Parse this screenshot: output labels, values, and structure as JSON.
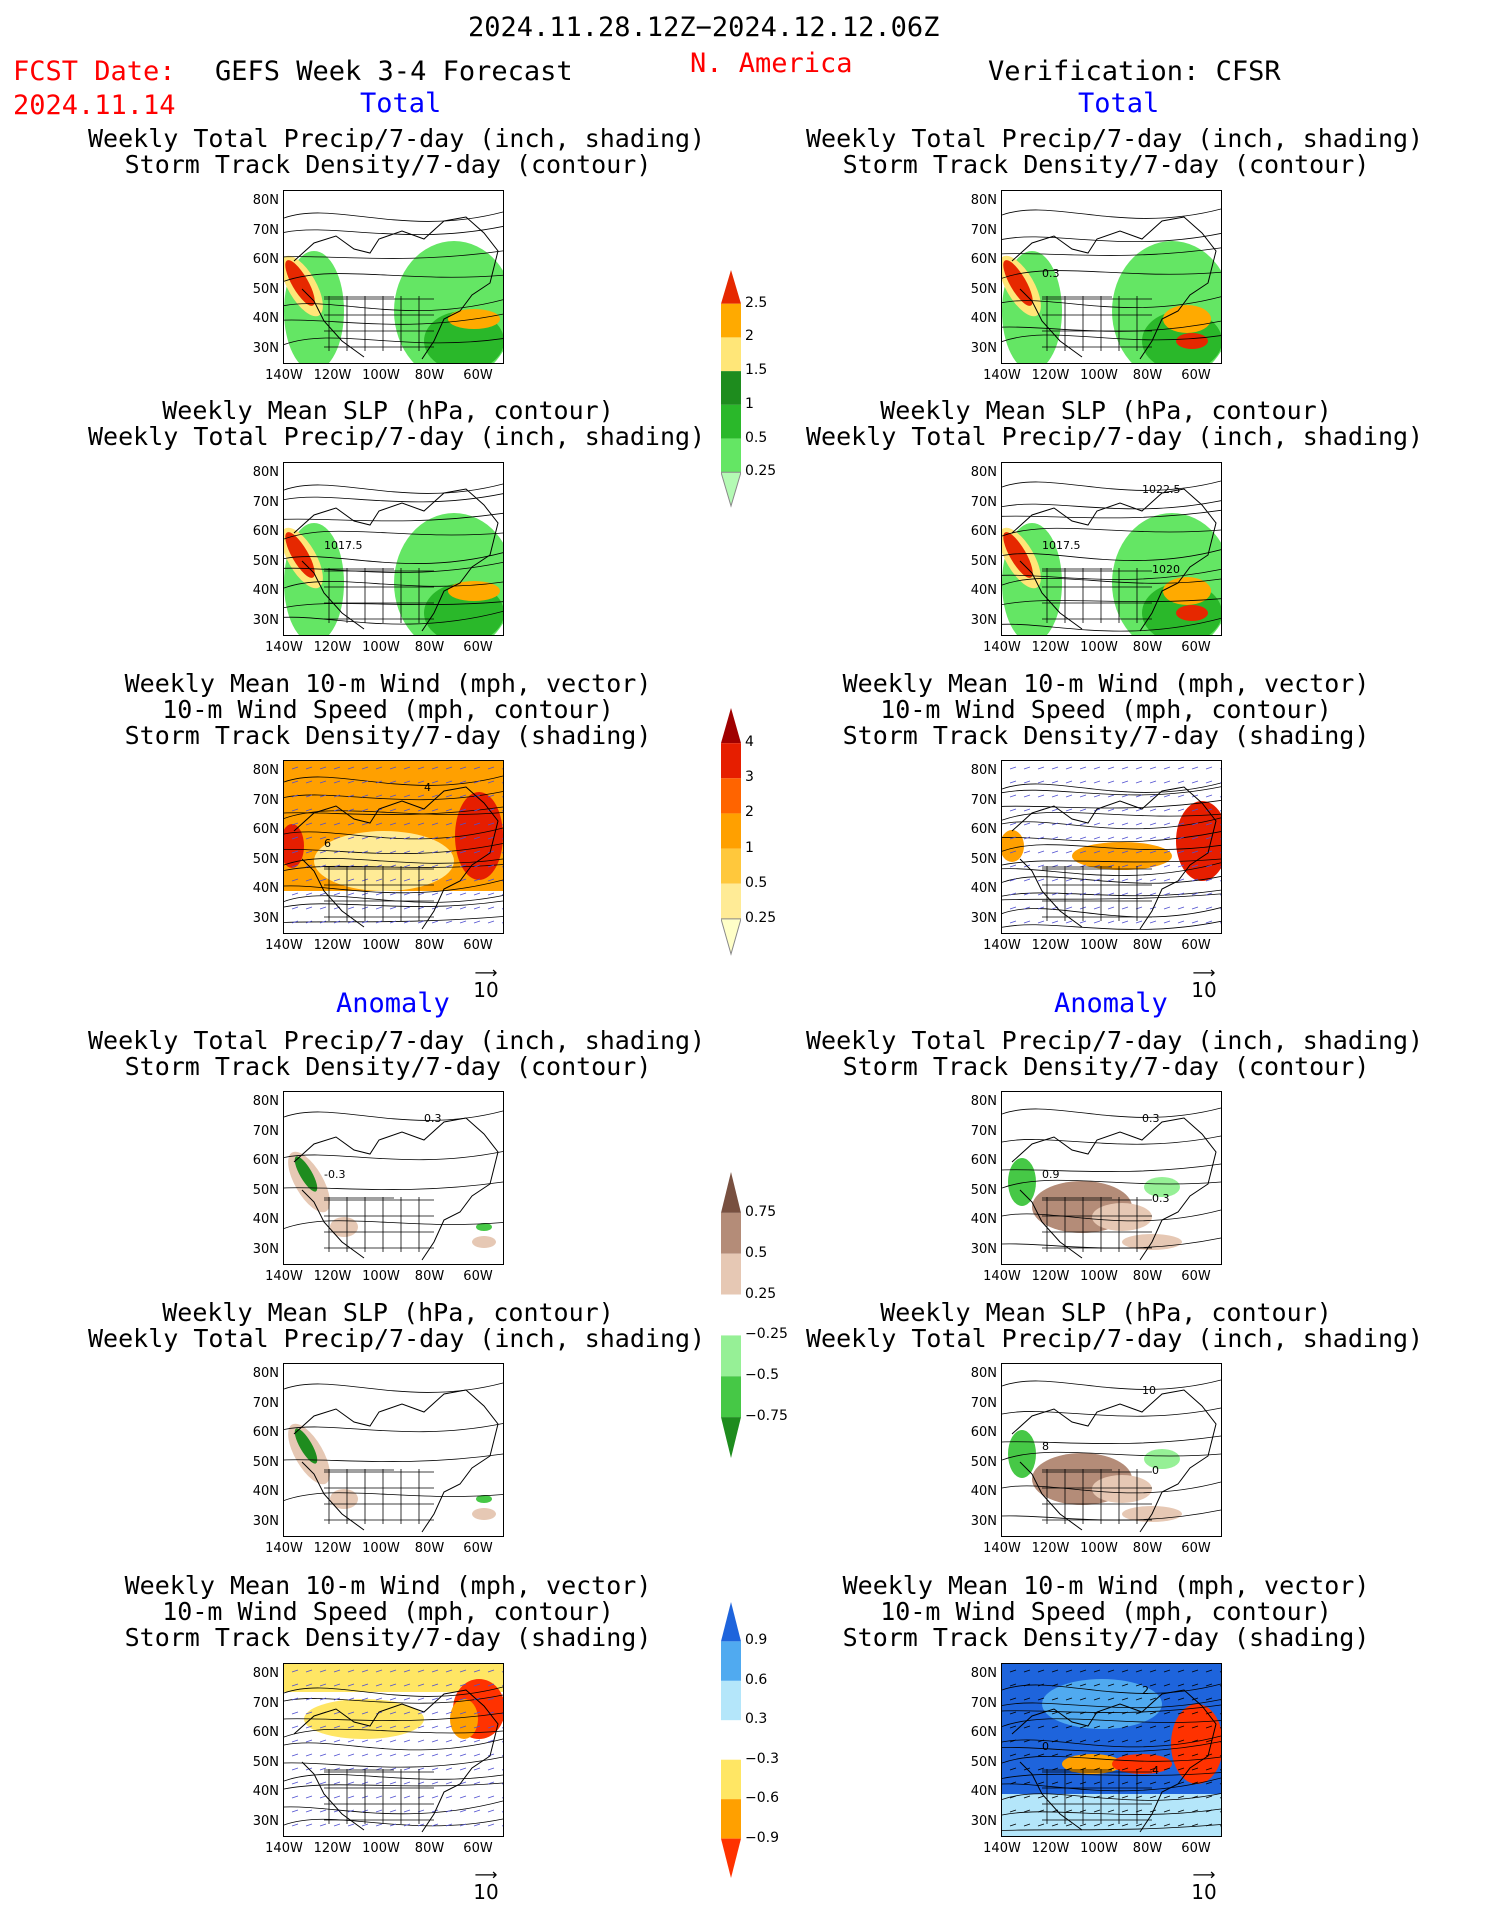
{
  "header": {
    "period": "2024.11.28.12Z−2024.12.12.06Z",
    "fcst_label": "FCST Date:",
    "fcst_date": "2024.11.14",
    "model": "GEFS Week 3-4 Forecast",
    "region": "N. America",
    "verification": "Verification: CFSR"
  },
  "sections": {
    "total": "Total",
    "anomaly": "Anomaly"
  },
  "titles": {
    "precip_storm": [
      "Weekly Total Precip/7-day (inch, shading)",
      "Storm Track Density/7-day (contour)"
    ],
    "slp_precip": [
      "Weekly Mean SLP (hPa, contour)",
      "Weekly Total Precip/7-day (inch, shading)"
    ],
    "wind_storm": [
      "Weekly Mean 10-m Wind (mph, vector)",
      "10-m Wind Speed (mph, contour)",
      "Storm Track Density/7-day (shading)"
    ]
  },
  "axes": {
    "lat_labels": [
      "80N",
      "70N",
      "60N",
      "50N",
      "40N",
      "30N"
    ],
    "lon_labels": [
      "140W",
      "120W",
      "100W",
      "80W",
      "60W"
    ]
  },
  "vector_reference": "10",
  "contour_labels": {
    "f_slp_total": [
      "1017.5"
    ],
    "v_slp_total": [
      "1017.5",
      "1022.5",
      "1020"
    ],
    "v_precip_total": [
      "0.3"
    ],
    "f_wind_total": [
      "6",
      "4"
    ],
    "f_precip_anom": [
      "-0.3",
      "0.3"
    ],
    "v_precip_anom": [
      "0.9",
      "0.3",
      "0.3"
    ],
    "v_slp_anom": [
      "8",
      "10",
      "0"
    ],
    "v_wind_anom": [
      "0",
      "2",
      "4"
    ]
  },
  "colorbars": [
    {
      "id": "precip_total",
      "labels": [
        "0.25",
        "0.5",
        "1",
        "1.5",
        "2",
        "2.5"
      ],
      "colors": [
        "#b4fab4",
        "#64e664",
        "#2ab82a",
        "#1e8c1e",
        "#ffe678",
        "#ffaa00",
        "#e62800"
      ]
    },
    {
      "id": "storm_total",
      "labels": [
        "0.25",
        "0.5",
        "1",
        "2",
        "3",
        "4"
      ],
      "colors": [
        "#ffffc8",
        "#ffeb96",
        "#ffc83c",
        "#ffa000",
        "#ff6400",
        "#e61e00",
        "#a00000"
      ]
    },
    {
      "id": "precip_anom",
      "labels": [
        "0.75",
        "0.5",
        "0.25",
        "−0.25",
        "−0.5",
        "−0.75"
      ],
      "colors": [
        "#1e8c1e",
        "#46c846",
        "#96f096",
        "#ffffff",
        "#e6c8b4",
        "#b48c78",
        "#785040"
      ]
    },
    {
      "id": "storm_anom",
      "labels": [
        "0.9",
        "0.6",
        "0.3",
        "−0.3",
        "−0.6",
        "−0.9"
      ],
      "colors": [
        "#ff3200",
        "#ffa000",
        "#ffe664",
        "#ffffff",
        "#b4e6fa",
        "#50aaf0",
        "#1e64dc"
      ]
    }
  ]
}
